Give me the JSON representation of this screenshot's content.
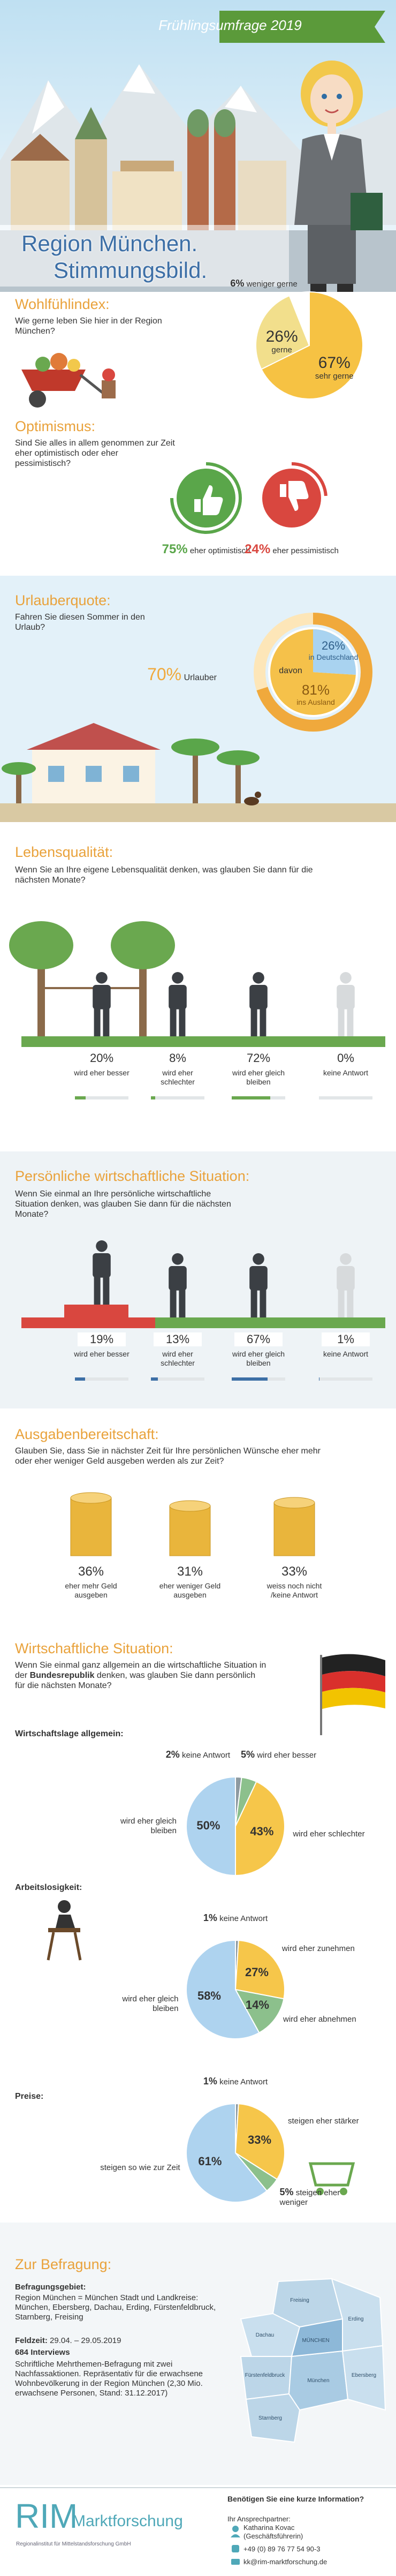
{
  "header": {
    "banner": "Frühlingsumfrage 2019",
    "title": "Region München.",
    "subtitle": "Stimmungsbild."
  },
  "chart_data": [
    {
      "type": "pie",
      "title": "Wohlfühlindex:",
      "question": "Wie gerne leben Sie hier in der Region München?",
      "categories": [
        "sehr gerne",
        "gerne",
        "weniger gerne"
      ],
      "values": [
        67,
        26,
        6
      ],
      "value_labels": [
        "67%",
        "26%",
        "6%"
      ],
      "colors": [
        "#f6c243",
        "#f2df8c",
        "#ffffff"
      ]
    },
    {
      "type": "thumbs",
      "title": "Optimismus:",
      "question": "Sind Sie alles in allem genommen zur Zeit eher optimistisch oder eher pessimistisch?",
      "categories": [
        "eher optimistisch",
        "eher pessimistisch"
      ],
      "values": [
        75,
        24
      ],
      "value_labels": [
        "75%",
        "24%"
      ],
      "colors": [
        "#5aa64a",
        "#d9473f"
      ]
    },
    {
      "type": "donut",
      "title": "Urlauberquote:",
      "question": "Fahren Sie diesen Sommer in den Urlaub?",
      "share": {
        "value": 70,
        "value_label": "70%",
        "label": "Urlauber"
      },
      "inner_label": "davon",
      "categories": [
        "in Deutschland",
        "ins Ausland"
      ],
      "values": [
        26,
        81
      ],
      "value_labels": [
        "26%",
        "81%"
      ],
      "colors": [
        "#a9d3f0",
        "#f5c14a"
      ]
    },
    {
      "type": "figures",
      "title": "Lebensqualität:",
      "question": "Wenn Sie an Ihre eigene Lebensqualität denken, was glauben Sie dann für die nächsten Monate?",
      "categories": [
        "wird eher besser",
        "wird eher schlechter",
        "wird eher gleich bleiben",
        "keine Antwort"
      ],
      "values": [
        20,
        8,
        72,
        0
      ],
      "value_labels": [
        "20%",
        "8%",
        "72%",
        "0%"
      ],
      "color": "#6aa84f"
    },
    {
      "type": "figures",
      "title": "Persönliche wirtschaftliche Situation:",
      "question": "Wenn Sie einmal an Ihre persönliche wirtschaftliche Situation denken, was glauben Sie dann für die nächsten Monate?",
      "categories": [
        "wird eher besser",
        "wird eher schlechter",
        "wird eher gleich bleiben",
        "keine Antwort"
      ],
      "values": [
        19,
        13,
        67,
        1
      ],
      "value_labels": [
        "19%",
        "13%",
        "67%",
        "1%"
      ],
      "color": "#d9473f"
    },
    {
      "type": "coins",
      "title": "Ausgabenbereitschaft:",
      "question": "Glauben Sie, dass Sie in nächster Zeit für Ihre persönlichen Wünsche eher mehr oder eher weniger Geld ausgeben werden als zur Zeit?",
      "categories": [
        "eher mehr Geld ausgeben",
        "eher weniger Geld ausgeben",
        "weiss noch nicht /keine Antwort"
      ],
      "values": [
        36,
        31,
        33
      ],
      "value_labels": [
        "36%",
        "31%",
        "33%"
      ],
      "color": "#e9b53c"
    },
    {
      "type": "pie",
      "heading": "Wirtschaftliche Situation:",
      "question": [
        "Wenn Sie einmal ganz allgemein an die wirtschaftliche Situation in der ",
        "Bundesrepublik",
        " denken, was glauben Sie dann persönlich für die nächsten Monate?"
      ],
      "title": "Wirtschaftslage allgemein:",
      "categories": [
        "keine Antwort",
        "wird eher besser",
        "wird eher schlechter",
        "wird eher gleich bleiben"
      ],
      "values": [
        2,
        5,
        43,
        50
      ],
      "value_labels": [
        "2%",
        "5%",
        "43%",
        "50%"
      ],
      "colors": [
        "#8e9aa0",
        "#8cc08c",
        "#f6c64a",
        "#aed3ef"
      ]
    },
    {
      "type": "pie",
      "title": "Arbeitslosigkeit:",
      "categories": [
        "keine Antwort",
        "wird eher zunehmen",
        "wird eher abnehmen",
        "wird eher gleich bleiben"
      ],
      "values": [
        1,
        27,
        14,
        58
      ],
      "value_labels": [
        "1%",
        "27%",
        "14%",
        "58%"
      ],
      "colors": [
        "#8e9aa0",
        "#f6c64a",
        "#8cc08c",
        "#aed3ef"
      ]
    },
    {
      "type": "pie",
      "title": "Preise:",
      "categories": [
        "keine Antwort",
        "steigen eher stärker",
        "steigen eher weniger",
        "steigen so wie zur Zeit"
      ],
      "values": [
        1,
        33,
        5,
        61
      ],
      "value_labels": [
        "1%",
        "33%",
        "5%",
        "61%"
      ],
      "colors": [
        "#8e9aa0",
        "#f6c64a",
        "#8cc08c",
        "#aed3ef"
      ]
    }
  ],
  "survey": {
    "title": "Zur Befragung:",
    "area_label": "Befragungsgebiet:",
    "area": "Region München = München Stadt und Landkreise: München, Ebersberg, Dachau, Erding, Fürstenfeldbruck, Starnberg, Freising",
    "fieldwork_label": "Feldzeit:",
    "fieldwork": "29.04. – 29.05.2019",
    "interviews": "684 Interviews",
    "method": "Schriftliche Mehrthemen-Befragung mit zwei Nachfassaktionen. Repräsentativ für die erwachsene Wohnbevölkerung in der Region München (2,30 Mio. erwachsene Personen, Stand: 31.12.2017)",
    "map_labels": [
      "Freising",
      "Erding",
      "Dachau",
      "Fürstenfeldbruck",
      "MÜNCHEN",
      "München",
      "Ebersberg",
      "Starnberg"
    ]
  },
  "footer": {
    "logo": "RIM",
    "logo_text": "Marktforschung",
    "tagline": "Regionalinstitut für Mittelstandsforschung GmbH",
    "question": "Benötigen Sie eine kurze Information?",
    "contact_label": "Ihr Ansprechpartner:",
    "name": "Katharina Kovac",
    "role": "(Geschäftsführerin)",
    "phone": "+49 (0) 89 76 77 54 90-3",
    "email": "kk@rim-marktforschung.de"
  }
}
